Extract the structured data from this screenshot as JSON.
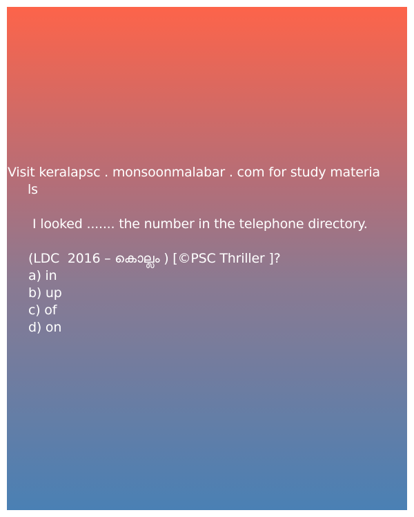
{
  "site_line": {
    "part1": "Visit keralapsc . monsoonmalabar . com for study materia",
    "part2": "ls"
  },
  "question": "I looked ....... the number in the telephone directory.",
  "source": "(LDC  2016 – കൊല്ലം ) [©PSC Thriller ]?",
  "options": [
    {
      "label": "a) in"
    },
    {
      "label": "b) up"
    },
    {
      "label": "c) of"
    },
    {
      "label": "d) on"
    }
  ],
  "colors": {
    "gradient_top": "#fd644a",
    "gradient_bottom": "#4a80b4",
    "text": "#ffffff"
  }
}
